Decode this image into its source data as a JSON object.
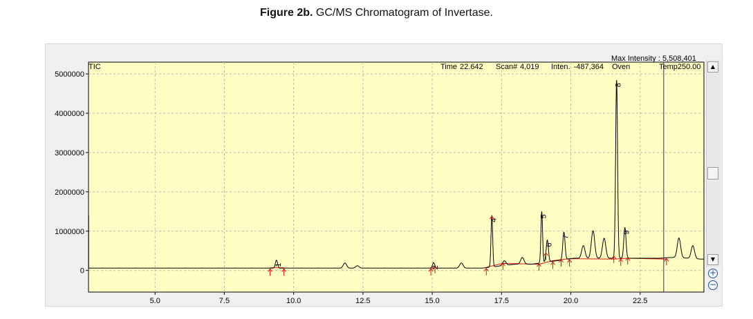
{
  "caption": {
    "figure_label": "Figure 2b.",
    "text": "GC/MS Chromatogram of Invertase."
  },
  "header": {
    "max_intensity": "Max Intensity : 5,508,401",
    "tic": "TIC",
    "time_label": "Time",
    "time_value": "22.642",
    "scan_label": "Scan#",
    "scan_value": "4,019",
    "inten_label": "Inten.",
    "inten_value": "-487,364",
    "oven_label": "Oven",
    "oven_value": "Temp250.00"
  },
  "chart_data": {
    "type": "line",
    "title": "",
    "xlabel": "",
    "ylabel": "",
    "xlim": [
      2.6,
      24.8
    ],
    "ylim": [
      -550000,
      5300000
    ],
    "x_ticks": [
      5.0,
      7.5,
      10.0,
      12.5,
      15.0,
      17.5,
      20.0,
      22.5
    ],
    "x_tick_labels": [
      "5.0",
      "7.5",
      "10.0",
      "12.5",
      "15.0",
      "17.5",
      "20.0",
      "22.5"
    ],
    "y_ticks": [
      0,
      1000000,
      2000000,
      3000000,
      4000000,
      5000000
    ],
    "y_tick_labels": [
      "0",
      "1000000",
      "2000000",
      "3000000",
      "4000000",
      "5000000"
    ],
    "grid": true,
    "background": "#ffffc4",
    "line_color": "#000000",
    "cursor_x": 23.35,
    "baseline_y": 60000,
    "peaks": [
      {
        "label": "1",
        "rt": 9.38,
        "height": 200000
      },
      {
        "label": "2",
        "rt": 15.05,
        "height": 140000
      },
      {
        "label": "4",
        "rt": 17.15,
        "height": 1310000
      },
      {
        "label": "5",
        "rt": 18.95,
        "height": 1300000
      },
      {
        "label": "6",
        "rt": 19.15,
        "height": 560000
      },
      {
        "label": "7",
        "rt": 19.75,
        "height": 700000
      },
      {
        "label": "8",
        "rt": 21.65,
        "height": 4530000
      },
      {
        "label": "9",
        "rt": 21.95,
        "height": 780000
      }
    ],
    "minor_peaks": [
      {
        "rt": 11.85,
        "height": 130000
      },
      {
        "rt": 12.3,
        "height": 60000
      },
      {
        "rt": 16.05,
        "height": 130000
      },
      {
        "rt": 17.6,
        "height": 120000
      },
      {
        "rt": 18.25,
        "height": 170000
      },
      {
        "rt": 20.45,
        "height": 320000
      },
      {
        "rt": 20.8,
        "height": 700000
      },
      {
        "rt": 21.2,
        "height": 510000
      },
      {
        "rt": 23.9,
        "height": 500000
      },
      {
        "rt": 24.4,
        "height": 330000
      }
    ],
    "integration_marks": [
      9.15,
      9.65,
      14.95,
      15.1,
      16.95,
      17.15,
      17.55,
      18.85,
      19.1,
      19.35,
      19.65,
      19.95,
      21.55,
      21.8,
      22.05,
      23.45
    ],
    "integration_baseline": [
      [
        16.95,
        80000
      ],
      [
        17.55,
        180000
      ],
      [
        18.85,
        160000
      ],
      [
        19.35,
        250000
      ],
      [
        19.95,
        300000
      ],
      [
        21.55,
        290000
      ],
      [
        22.05,
        310000
      ],
      [
        23.45,
        290000
      ]
    ]
  },
  "scrollbar": {
    "up": "▲",
    "down": "▼",
    "zoom_in": "+",
    "zoom_out": "−"
  }
}
